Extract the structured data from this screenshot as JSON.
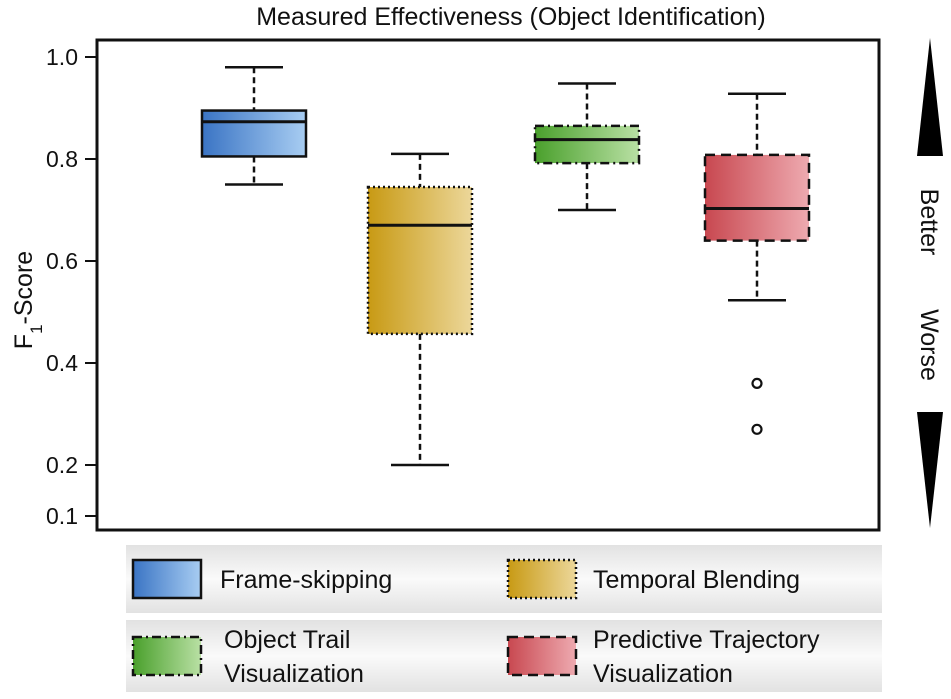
{
  "chart_data": {
    "type": "box",
    "title": "Measured Effectiveness (Object Identification)",
    "ylabel": {
      "main": "F",
      "sub": "1",
      "rest": "-Score"
    },
    "ylim": [
      0.08,
      1.04
    ],
    "yticks": [
      {
        "value": 0.1,
        "label": "0.1"
      },
      {
        "value": 0.2,
        "label": "0.2"
      },
      {
        "value": 0.4,
        "label": "0.4"
      },
      {
        "value": 0.6,
        "label": "0.6"
      },
      {
        "value": 0.8,
        "label": "0.8"
      },
      {
        "value": 1.0,
        "label": "1.0"
      }
    ],
    "series": [
      {
        "name": "Frame-skipping",
        "min": 0.75,
        "q1": 0.805,
        "median": 0.873,
        "q3": 0.895,
        "max": 0.98,
        "outliers": [],
        "colors": [
          "#3a74c4",
          "#a8cdf2"
        ],
        "edge": "solid"
      },
      {
        "name": "Temporal Blending",
        "min": 0.2,
        "q1": 0.457,
        "median": 0.67,
        "q3": 0.745,
        "max": 0.81,
        "outliers": [],
        "colors": [
          "#c89a14",
          "#ecd79a"
        ],
        "edge": "dotted"
      },
      {
        "name": "Object Trail Visualization",
        "min": 0.7,
        "q1": 0.792,
        "median": 0.838,
        "q3": 0.865,
        "max": 0.948,
        "outliers": [],
        "colors": [
          "#4aa02c",
          "#b9e0a4"
        ],
        "edge": "dashdot"
      },
      {
        "name": "Predictive Trajectory Visualization",
        "min": 0.523,
        "q1": 0.64,
        "median": 0.703,
        "q3": 0.808,
        "max": 0.928,
        "outliers": [
          0.36,
          0.27
        ],
        "colors": [
          "#c84850",
          "#eeaab0"
        ],
        "edge": "dashed"
      }
    ],
    "annotations": {
      "better": "Better",
      "worse": "Worse"
    },
    "legend": {
      "placement": "bottom",
      "rows": [
        [
          {
            "series": 0,
            "lines": [
              "Frame-skipping"
            ]
          },
          {
            "series": 1,
            "lines": [
              "Temporal Blending"
            ]
          }
        ],
        [
          {
            "series": 2,
            "lines": [
              "Object Trail",
              "Visualization"
            ]
          },
          {
            "series": 3,
            "lines": [
              "Predictive Trajectory",
              "Visualization"
            ]
          }
        ]
      ]
    }
  }
}
